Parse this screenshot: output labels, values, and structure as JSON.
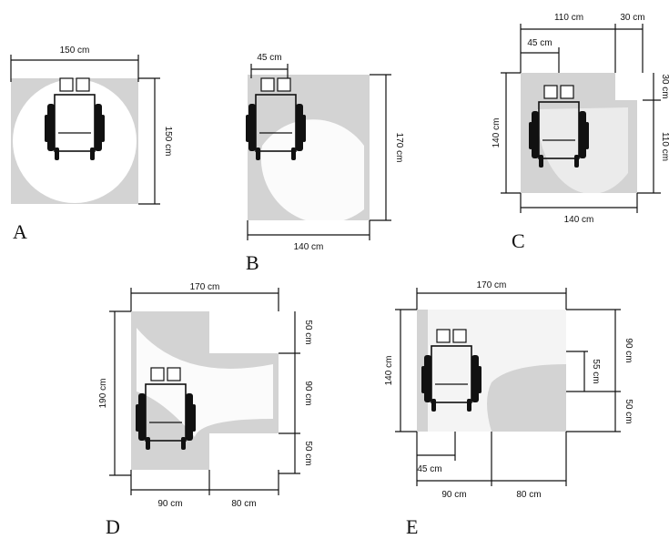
{
  "panels": {
    "A": {
      "letter": "A",
      "top": "150 cm",
      "right": "150 cm"
    },
    "B": {
      "letter": "B",
      "top": "45 cm",
      "right": "170 cm",
      "bottom": "140 cm"
    },
    "C": {
      "letter": "C",
      "top_left": "45 cm",
      "top_wide": "110 cm",
      "top_right": "30 cm",
      "left": "140 cm",
      "right_small": "30 cm",
      "right": "110 cm",
      "bottom": "140 cm"
    },
    "D": {
      "letter": "D",
      "top": "170 cm",
      "left": "190 cm",
      "right_top": "50 cm",
      "right_mid": "90 cm",
      "right_bot": "50 cm",
      "bottom_left": "90 cm",
      "bottom_right": "80 cm"
    },
    "E": {
      "letter": "E",
      "top": "170 cm",
      "left": "140 cm",
      "inner": "55 cm",
      "right_top": "90 cm",
      "right_bot": "50 cm",
      "bottom_small": "45 cm",
      "bottom_left": "90 cm",
      "bottom_right": "80 cm"
    }
  }
}
